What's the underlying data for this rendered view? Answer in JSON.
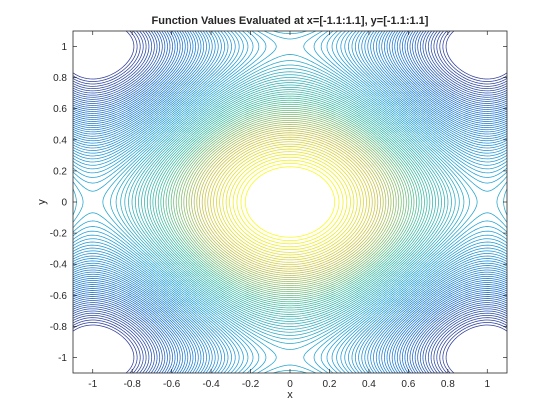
{
  "chart_data": {
    "type": "contour",
    "title": "Function Values Evaluated at x=[-1.1:1.1], y=[-1.1:1.1]",
    "xlabel": "x",
    "ylabel": "y",
    "xlim": [
      -1.1,
      1.1
    ],
    "ylim": [
      -1.1,
      1.1
    ],
    "x_ticks": [
      -1,
      -0.8,
      -0.6,
      -0.4,
      -0.2,
      0,
      0.2,
      0.4,
      0.6,
      0.8,
      1
    ],
    "x_tick_labels": [
      "-1",
      "-0.8",
      "-0.6",
      "-0.4",
      "-0.2",
      "0",
      "0.2",
      "0.4",
      "0.6",
      "0.8",
      "1"
    ],
    "y_ticks": [
      1,
      0.8,
      0.6,
      0.4,
      0.2,
      0,
      -0.2,
      -0.4,
      -0.6,
      -0.8,
      -1
    ],
    "y_tick_labels": [
      "1",
      "0.8",
      "0.6",
      "0.4",
      "0.2",
      "0",
      "-0.2",
      "-0.4",
      "-0.6",
      "-0.8",
      "-1"
    ],
    "grid": false,
    "colormap": "parula",
    "colors": {
      "low": "#352a87",
      "mid": "#1ea3d8",
      "mid2": "#38b99e",
      "high": "#f9fb0e",
      "axis": "#262626"
    }
  }
}
